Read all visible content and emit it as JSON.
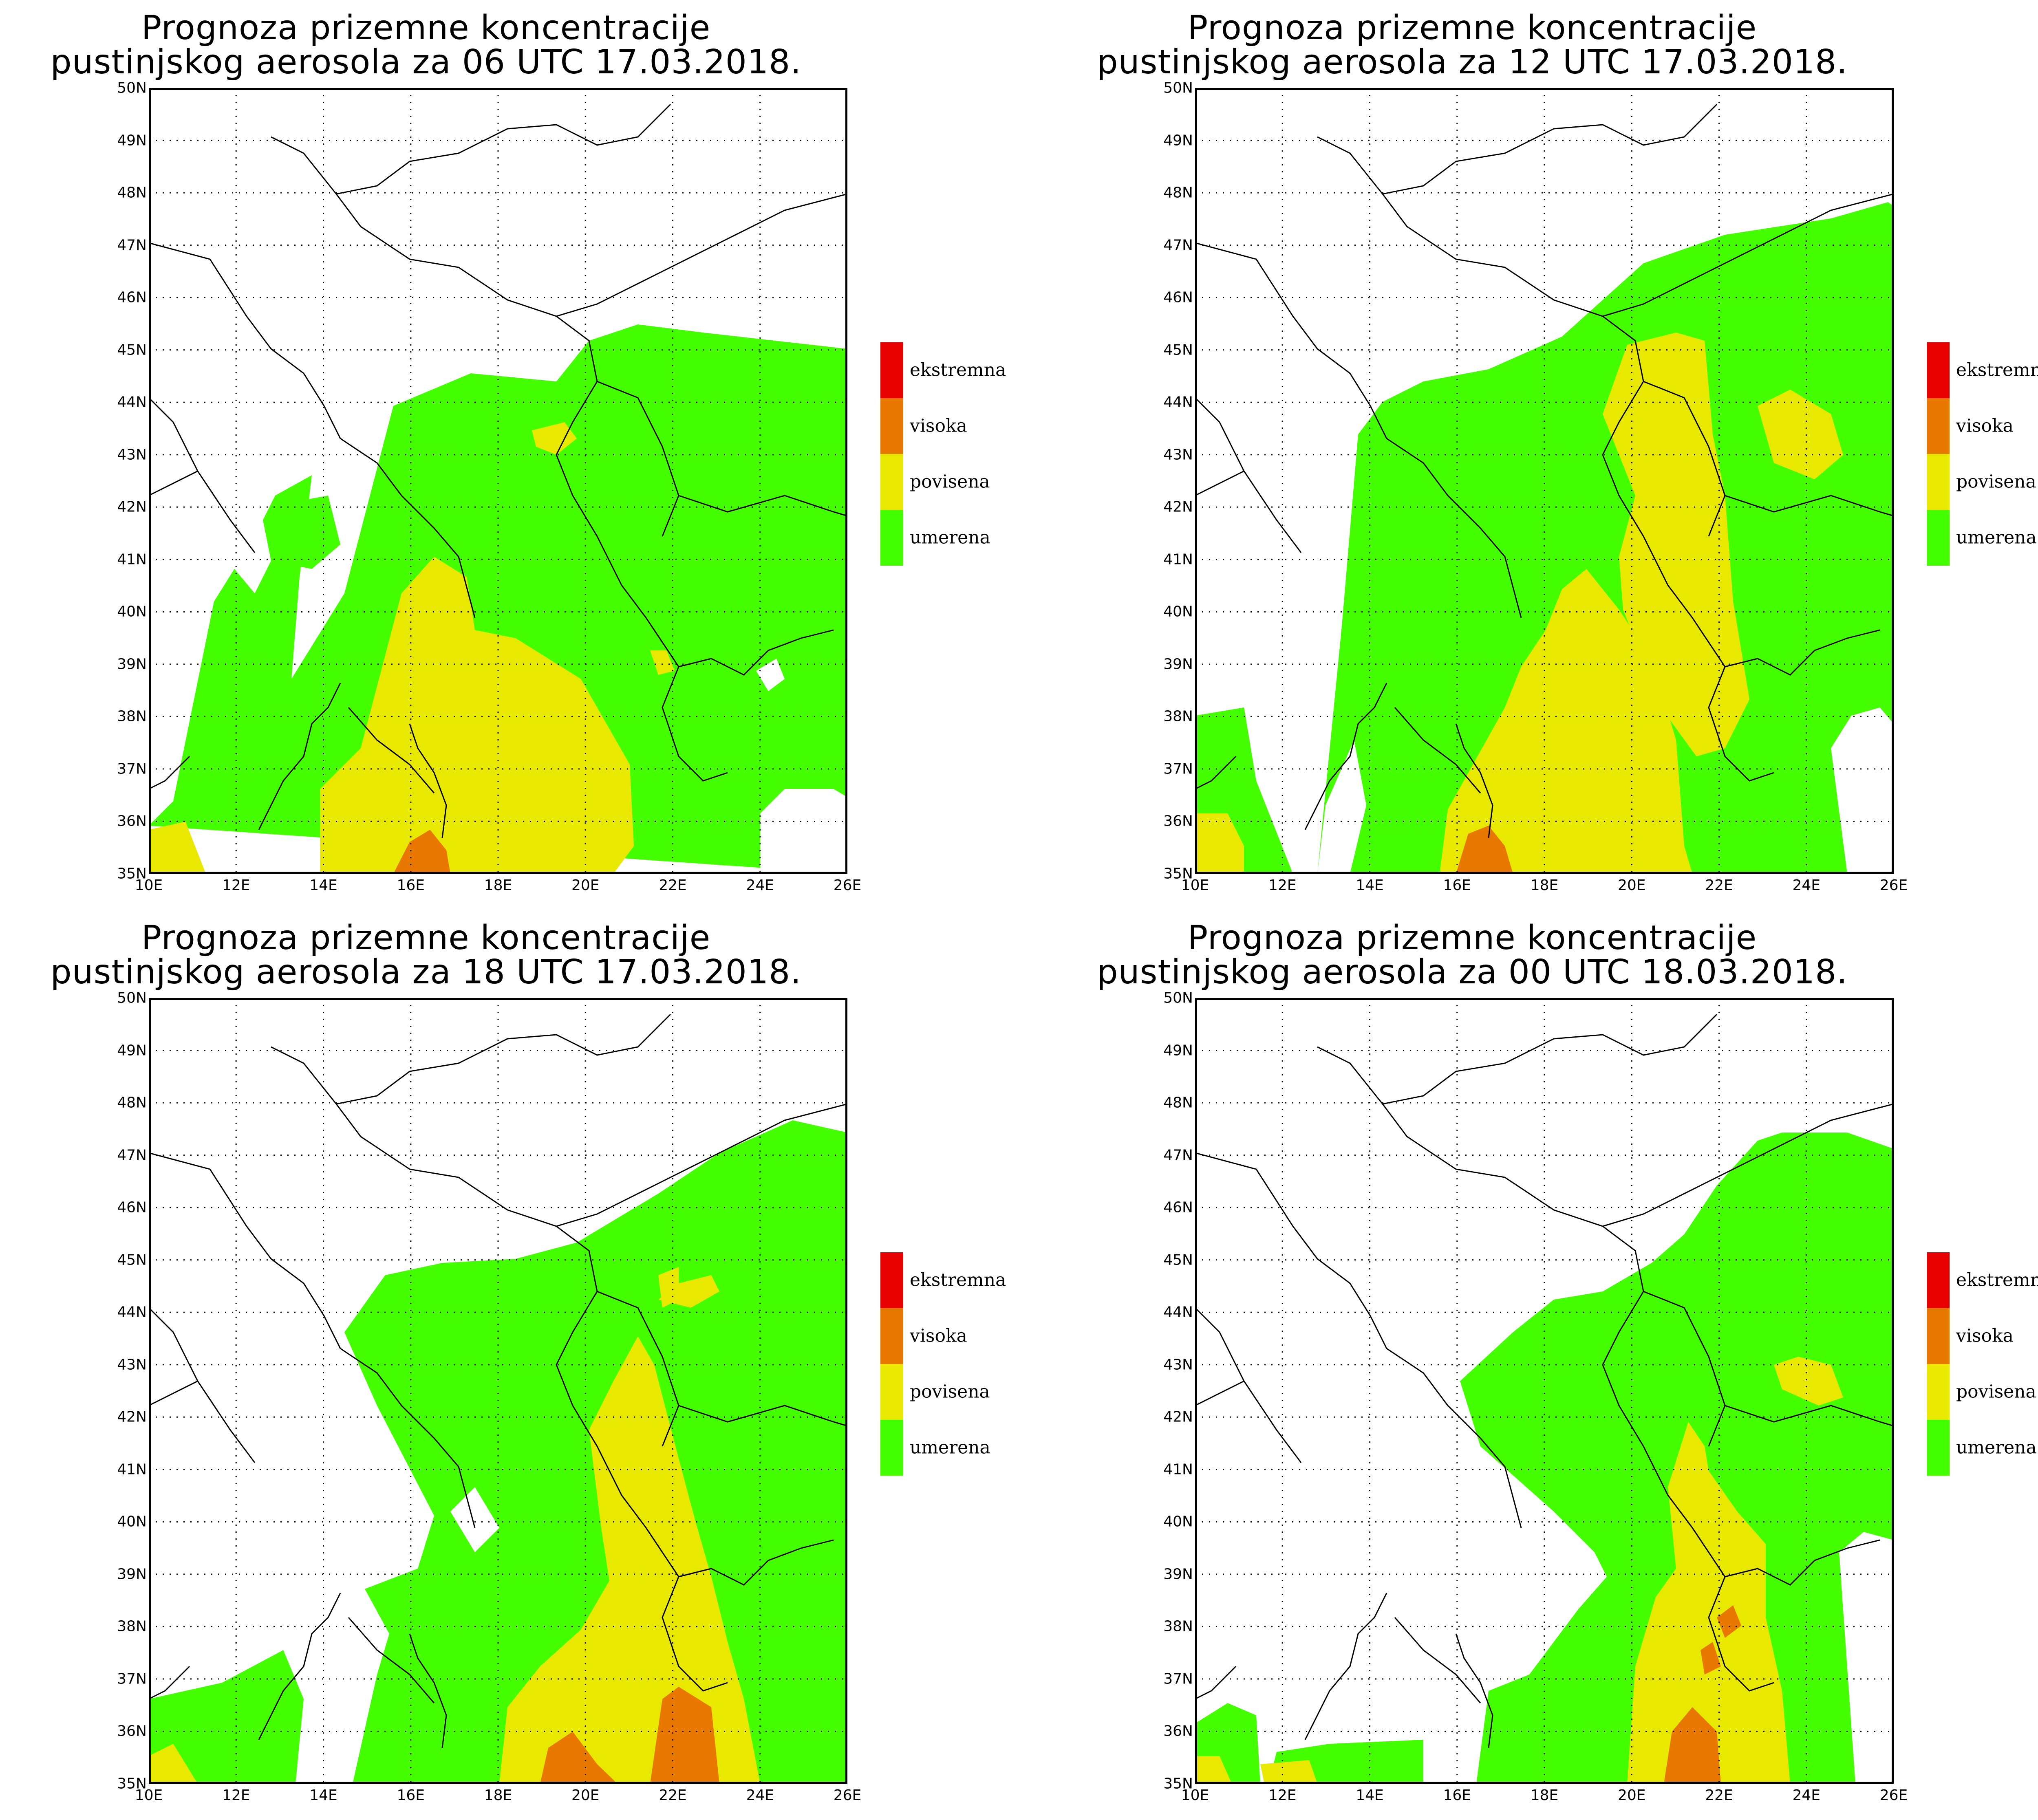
{
  "colors": {
    "umerena": "#44ff00",
    "povisena": "#e8e800",
    "visoka": "#e87800",
    "ekstremna": "#e80000",
    "border": "#000000"
  },
  "axes": {
    "lat_labels": [
      "35N",
      "36N",
      "37N",
      "38N",
      "39N",
      "40N",
      "41N",
      "42N",
      "43N",
      "44N",
      "45N",
      "46N",
      "47N",
      "48N",
      "49N",
      "50N"
    ],
    "lon_labels": [
      "10E",
      "12E",
      "14E",
      "16E",
      "18E",
      "20E",
      "22E",
      "24E",
      "26E"
    ]
  },
  "legend": [
    {
      "label": "ekstremna",
      "color_key": "ekstremna"
    },
    {
      "label": "visoka",
      "color_key": "visoka"
    },
    {
      "label": "povisena",
      "color_key": "povisena"
    },
    {
      "label": "umerena",
      "color_key": "umerena"
    }
  ],
  "panels": [
    {
      "title_line1": "Prognoza prizemne koncentracije",
      "title_line2": "pustinjskog aerosola za 06 UTC 17.03.2018."
    },
    {
      "title_line1": "Prognoza prizemne koncentracije",
      "title_line2": "pustinjskog aerosola za 12 UTC 17.03.2018."
    },
    {
      "title_line1": "Prognoza prizemne koncentracije",
      "title_line2": "pustinjskog aerosola za 18 UTC 17.03.2018."
    },
    {
      "title_line1": "Prognoza prizemne koncentracije",
      "title_line2": "pustinjskog aerosola za 00 UTC 18.03.2018."
    }
  ]
}
